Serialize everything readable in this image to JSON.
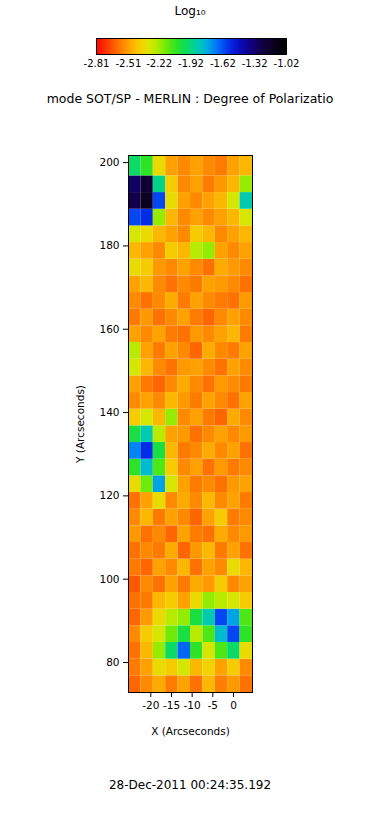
{
  "chart_data": {
    "type": "heatmap",
    "title": "mode SOT/SP - MERLIN : Degree of Polarizatio",
    "x_label": "X (Arcseconds)",
    "y_label": "Y (Arcseconds)",
    "caption": "28-Dec-2011 00:24:35.192",
    "xlim": [
      -25.4,
      4.6
    ],
    "ylim": [
      72.8,
      201.7
    ],
    "xticks": [
      -20,
      -15,
      -10,
      -5,
      0
    ],
    "yticks": [
      80,
      100,
      120,
      140,
      160,
      180,
      200
    ],
    "x_edges": [
      -25.4,
      -22.4,
      -19.4,
      -16.4,
      -13.4,
      -10.4,
      -7.4,
      -4.4,
      -1.4,
      1.6,
      4.6
    ],
    "y_edges": [
      72.8,
      76.8,
      80.8,
      84.8,
      88.8,
      92.8,
      96.8,
      100.8,
      104.8,
      108.8,
      112.8,
      116.8,
      120.8,
      124.8,
      128.8,
      132.8,
      136.8,
      140.8,
      144.8,
      148.8,
      152.8,
      156.8,
      160.8,
      164.8,
      168.8,
      172.8,
      176.8,
      180.8,
      184.8,
      188.8,
      192.8,
      196.8,
      201.7
    ],
    "cells": [
      [
        -2.62,
        -2.55,
        -2.48,
        -2.58,
        -2.5,
        -2.6,
        -2.45,
        -2.57,
        -2.52,
        -2.6
      ],
      [
        -2.58,
        -2.5,
        -2.35,
        -2.4,
        -2.3,
        -2.45,
        -2.38,
        -2.5,
        -2.4,
        -2.55
      ],
      [
        -2.6,
        -2.45,
        -2.2,
        -1.95,
        -1.65,
        -2.05,
        -2.3,
        -2.1,
        -1.95,
        -2.35
      ],
      [
        -2.55,
        -2.4,
        -2.3,
        -2.15,
        -2.0,
        -2.25,
        -2.1,
        -1.8,
        -1.6,
        -2.05
      ],
      [
        -2.62,
        -2.52,
        -2.35,
        -2.25,
        -2.2,
        -2.0,
        -1.85,
        -1.6,
        -1.75,
        -2.1
      ],
      [
        -2.6,
        -2.58,
        -2.45,
        -2.4,
        -2.5,
        -2.35,
        -2.2,
        -2.25,
        -2.3,
        -2.4
      ],
      [
        -2.65,
        -2.55,
        -2.6,
        -2.5,
        -2.58,
        -2.48,
        -2.52,
        -2.4,
        -2.55,
        -2.5
      ],
      [
        -2.58,
        -2.62,
        -2.5,
        -2.55,
        -2.45,
        -2.6,
        -2.5,
        -2.55,
        -2.35,
        -2.45
      ],
      [
        -2.6,
        -2.55,
        -2.58,
        -2.48,
        -2.62,
        -2.52,
        -2.45,
        -2.58,
        -2.5,
        -2.6
      ],
      [
        -2.52,
        -2.6,
        -2.55,
        -2.62,
        -2.5,
        -2.58,
        -2.6,
        -2.48,
        -2.55,
        -2.52
      ],
      [
        -2.55,
        -2.45,
        -2.58,
        -2.5,
        -2.55,
        -2.62,
        -2.5,
        -2.4,
        -2.58,
        -2.55
      ],
      [
        -2.6,
        -2.5,
        -2.35,
        -2.55,
        -2.48,
        -2.55,
        -2.45,
        -2.55,
        -2.5,
        -2.58
      ],
      [
        -2.35,
        -2.15,
        -1.75,
        -2.3,
        -2.5,
        -2.58,
        -2.55,
        -2.6,
        -2.52,
        -2.5
      ],
      [
        -2.05,
        -1.8,
        -2.1,
        -2.4,
        -2.55,
        -2.5,
        -2.6,
        -2.52,
        -2.58,
        -2.55
      ],
      [
        -1.7,
        -1.55,
        -2.0,
        -2.45,
        -2.58,
        -2.55,
        -2.48,
        -2.55,
        -2.5,
        -2.6
      ],
      [
        -2.0,
        -1.85,
        -2.25,
        -2.5,
        -2.52,
        -2.6,
        -2.55,
        -2.5,
        -2.55,
        -2.52
      ],
      [
        -2.4,
        -2.3,
        -2.45,
        -2.2,
        -2.55,
        -2.5,
        -2.58,
        -2.62,
        -2.48,
        -2.55
      ],
      [
        -2.55,
        -2.5,
        -2.55,
        -2.45,
        -2.52,
        -2.58,
        -2.5,
        -2.55,
        -2.6,
        -2.5
      ],
      [
        -2.5,
        -2.58,
        -2.62,
        -2.55,
        -2.48,
        -2.55,
        -2.6,
        -2.52,
        -2.55,
        -2.58
      ],
      [
        -2.3,
        -2.45,
        -2.55,
        -2.6,
        -2.52,
        -2.5,
        -2.55,
        -2.6,
        -2.5,
        -2.55
      ],
      [
        -2.25,
        -2.5,
        -2.58,
        -2.5,
        -2.55,
        -2.62,
        -2.48,
        -2.55,
        -2.58,
        -2.5
      ],
      [
        -2.5,
        -2.55,
        -2.5,
        -2.58,
        -2.6,
        -2.52,
        -2.55,
        -2.5,
        -2.45,
        -2.58
      ],
      [
        -2.58,
        -2.52,
        -2.6,
        -2.55,
        -2.5,
        -2.58,
        -2.62,
        -2.55,
        -2.5,
        -2.55
      ],
      [
        -2.55,
        -2.6,
        -2.55,
        -2.48,
        -2.58,
        -2.5,
        -2.55,
        -2.58,
        -2.6,
        -2.52
      ],
      [
        -2.5,
        -2.45,
        -2.55,
        -2.6,
        -2.55,
        -2.58,
        -2.5,
        -2.52,
        -2.55,
        -2.6
      ],
      [
        -2.35,
        -2.4,
        -2.52,
        -2.55,
        -2.5,
        -2.55,
        -2.6,
        -2.48,
        -2.52,
        -2.55
      ],
      [
        -2.45,
        -2.5,
        -2.55,
        -2.4,
        -2.45,
        -2.25,
        -2.2,
        -2.5,
        -2.55,
        -2.5
      ],
      [
        -2.3,
        -2.35,
        -2.45,
        -2.5,
        -2.55,
        -2.4,
        -2.45,
        -2.55,
        -2.5,
        -2.45
      ],
      [
        -1.6,
        -1.55,
        -2.2,
        -2.45,
        -2.55,
        -2.5,
        -2.55,
        -2.5,
        -2.45,
        -2.3
      ],
      [
        -1.25,
        -1.15,
        -1.6,
        -2.35,
        -2.5,
        -2.55,
        -2.5,
        -2.45,
        -2.3,
        -1.85
      ],
      [
        -1.3,
        -1.2,
        -1.9,
        -2.4,
        -2.55,
        -2.5,
        -2.58,
        -2.52,
        -2.45,
        -2.2
      ],
      [
        -1.95,
        -2.05,
        -2.35,
        -2.5,
        -2.55,
        -2.5,
        -2.55,
        -2.58,
        -2.5,
        -2.45
      ]
    ],
    "colorbar_label": "Log₁₀",
    "colorbar_range": [
      -2.81,
      -1.02
    ],
    "colorbar_ticks": [
      -2.81,
      -2.51,
      -2.22,
      -1.92,
      -1.62,
      -1.32,
      -1.02
    ]
  }
}
